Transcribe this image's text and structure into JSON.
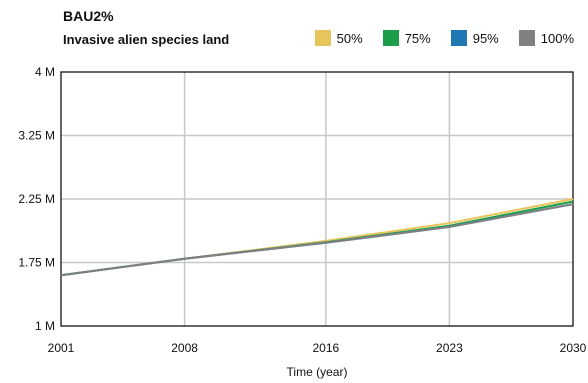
{
  "chart_data": {
    "type": "line",
    "title": "BAU2%",
    "subtitle": "Invasive alien species land",
    "xlabel": "Time (year)",
    "ylabel": "",
    "x_ticks": [
      2001,
      2008,
      2016,
      2023,
      2030
    ],
    "x_tick_labels": [
      "2001",
      "2008",
      "2016",
      "2023",
      "2030"
    ],
    "y_ticks": [
      1000000,
      1750000,
      2250000,
      3250000,
      4000000
    ],
    "y_tick_labels": [
      "1 M",
      "1.75 M",
      "2.25 M",
      "3.25 M",
      "4 M"
    ],
    "xlim": [
      2001,
      2030
    ],
    "grid": true,
    "legend_position": "top-right",
    "x": [
      2001,
      2008,
      2016,
      2023,
      2030
    ],
    "series": [
      {
        "name": "50%",
        "color": "#e8c55a",
        "values": [
          1600000,
          1780000,
          1920000,
          2060000,
          2250000
        ]
      },
      {
        "name": "75%",
        "color": "#1a9e4a",
        "values": [
          1600000,
          1780000,
          1910000,
          2040000,
          2230000
        ]
      },
      {
        "name": "95%",
        "color": "#1f77b4",
        "values": [
          1600000,
          1780000,
          1905000,
          2030000,
          2210000
        ]
      },
      {
        "name": "100%",
        "color": "#808080",
        "values": [
          1600000,
          1780000,
          1905000,
          2030000,
          2210000
        ]
      }
    ]
  }
}
